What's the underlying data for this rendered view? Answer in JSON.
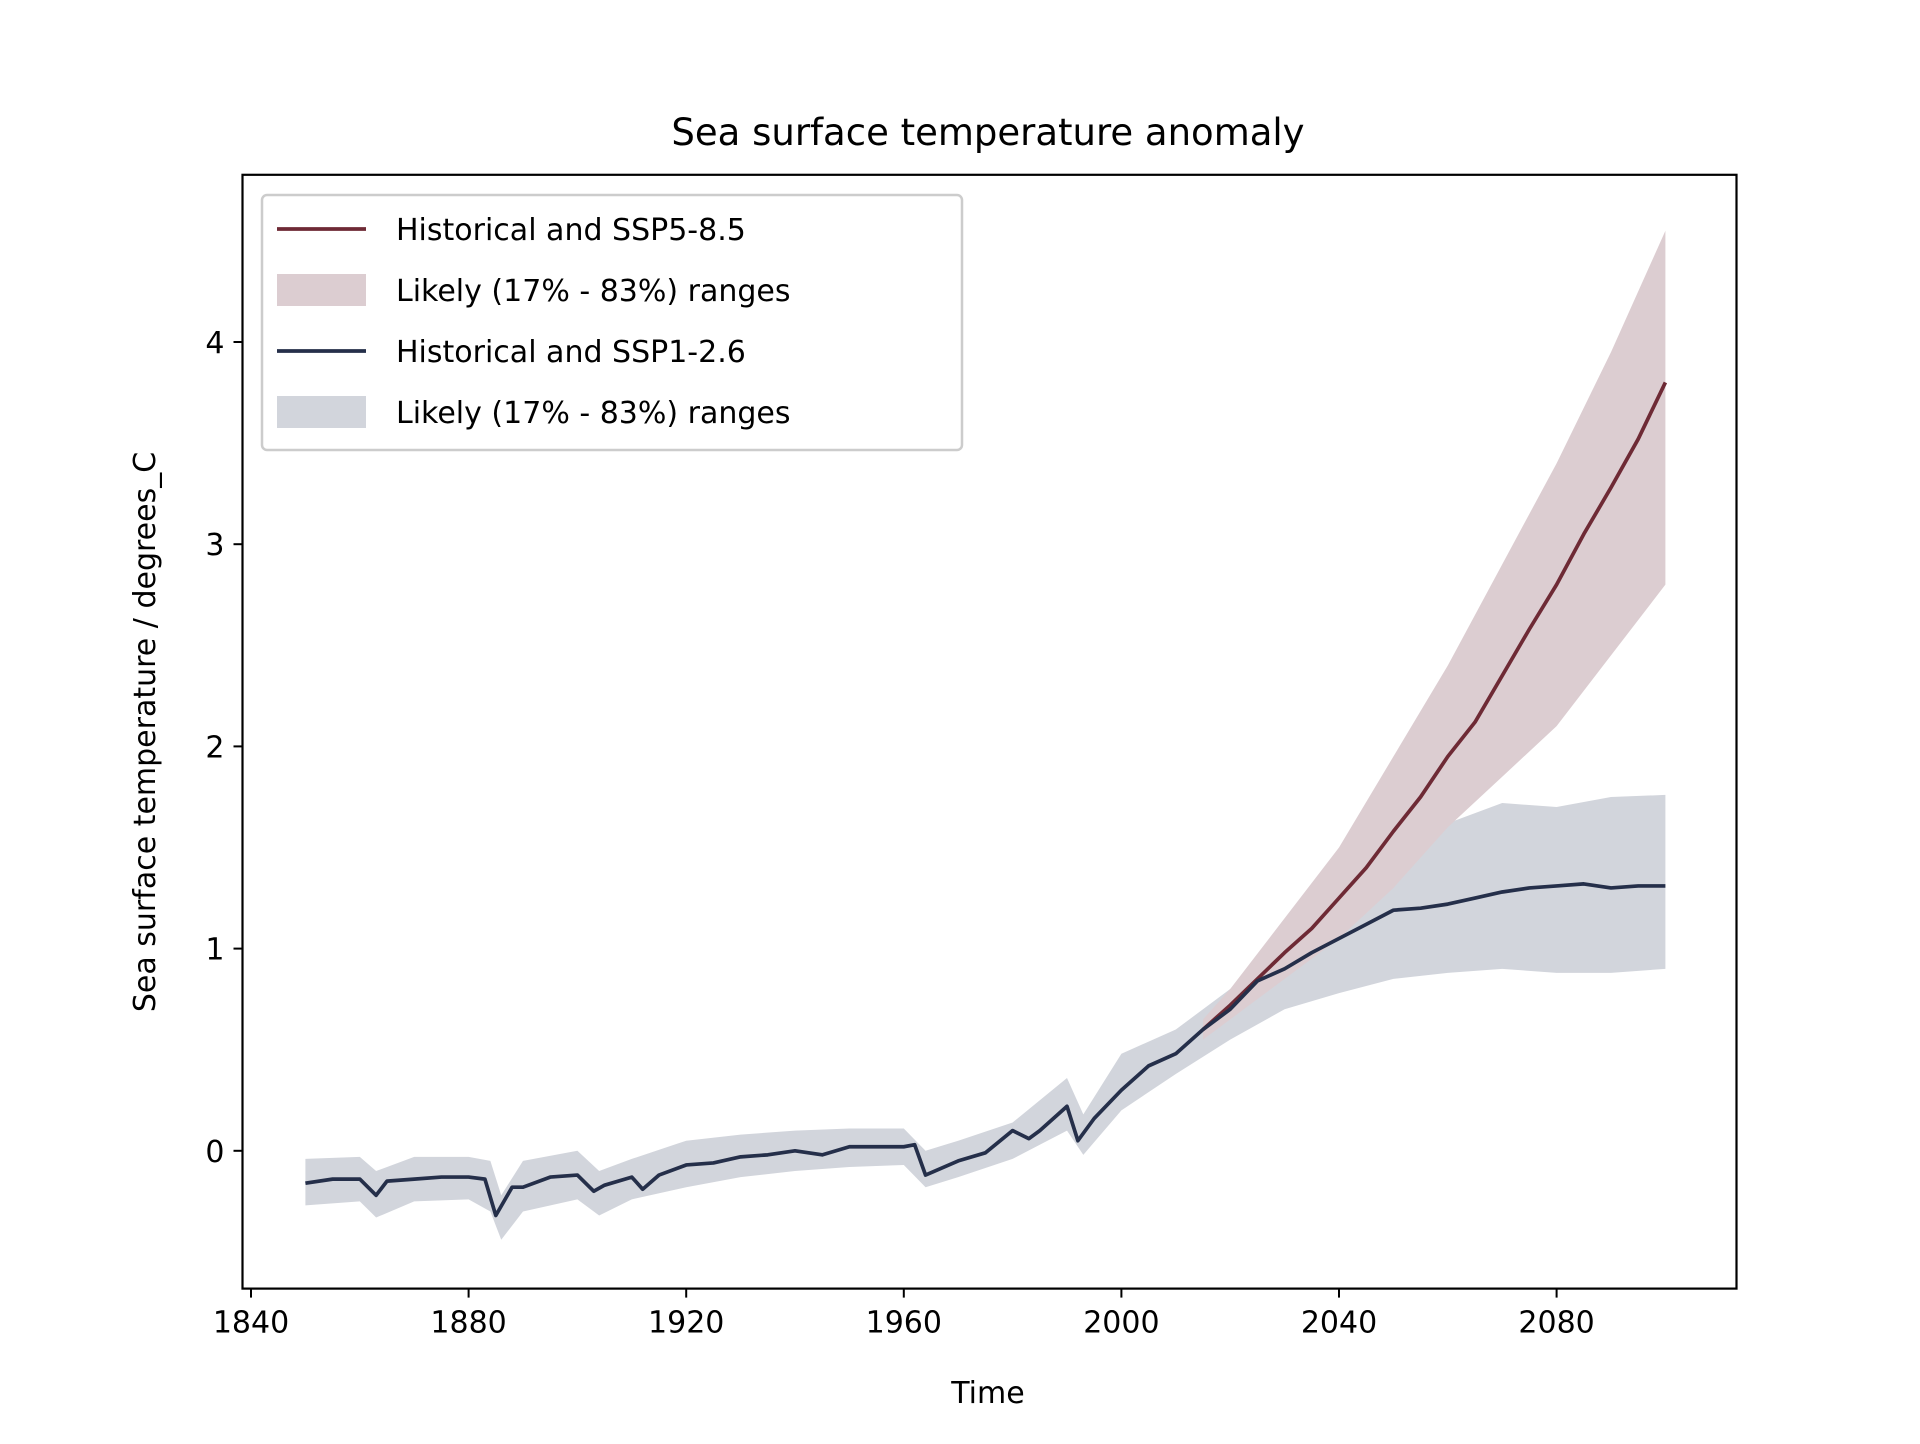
{
  "chart_data": {
    "type": "line",
    "title": "Sea surface temperature anomaly",
    "xlabel": "Time",
    "ylabel": "Sea surface temperature / degrees_C",
    "xlim": [
      1838,
      2110
    ],
    "ylim": [
      -0.68,
      4.8
    ],
    "xticks": [
      1840,
      1880,
      1920,
      1960,
      2000,
      2040,
      2080
    ],
    "yticks": [
      0,
      1,
      2,
      3,
      4
    ],
    "grid": false,
    "legend_placement": "top-left",
    "legend": [
      {
        "label": "Historical and SSP5-8.5",
        "kind": "line",
        "color": "#6e2a35"
      },
      {
        "label": "Likely (17% - 83%) ranges",
        "kind": "band",
        "color": "#dccdd1"
      },
      {
        "label": "Historical and SSP1-2.6",
        "kind": "line",
        "color": "#252f4a"
      },
      {
        "label": "Likely (17% - 83%) ranges",
        "kind": "band",
        "color": "#d2d5dc"
      }
    ],
    "series": [
      {
        "name": "Historical and SSP1-2.6",
        "color": "#252f4a",
        "x": [
          1850,
          1855,
          1860,
          1863,
          1865,
          1870,
          1875,
          1880,
          1883,
          1885,
          1888,
          1890,
          1895,
          1900,
          1903,
          1905,
          1910,
          1912,
          1915,
          1920,
          1925,
          1930,
          1935,
          1940,
          1945,
          1950,
          1955,
          1960,
          1962,
          1964,
          1970,
          1975,
          1980,
          1983,
          1985,
          1990,
          1992,
          1995,
          2000,
          2005,
          2010,
          2015,
          2020,
          2025,
          2030,
          2035,
          2040,
          2045,
          2050,
          2055,
          2060,
          2065,
          2070,
          2075,
          2080,
          2085,
          2090,
          2095,
          2100
        ],
        "y": [
          -0.16,
          -0.14,
          -0.14,
          -0.22,
          -0.15,
          -0.14,
          -0.13,
          -0.13,
          -0.14,
          -0.32,
          -0.18,
          -0.18,
          -0.13,
          -0.12,
          -0.2,
          -0.17,
          -0.13,
          -0.19,
          -0.12,
          -0.07,
          -0.06,
          -0.03,
          -0.02,
          0.0,
          -0.02,
          0.02,
          0.02,
          0.02,
          0.03,
          -0.12,
          -0.05,
          -0.01,
          0.1,
          0.06,
          0.1,
          0.22,
          0.05,
          0.16,
          0.3,
          0.42,
          0.48,
          0.6,
          0.7,
          0.84,
          0.9,
          0.98,
          1.05,
          1.12,
          1.19,
          1.2,
          1.22,
          1.25,
          1.28,
          1.3,
          1.31,
          1.32,
          1.3,
          1.31,
          1.31
        ]
      },
      {
        "name": "Historical and SSP5-8.5",
        "color": "#6e2a35",
        "x": [
          2015,
          2020,
          2025,
          2030,
          2035,
          2040,
          2045,
          2050,
          2055,
          2060,
          2065,
          2070,
          2075,
          2080,
          2085,
          2090,
          2095,
          2100
        ],
        "y": [
          0.6,
          0.72,
          0.85,
          0.98,
          1.1,
          1.25,
          1.4,
          1.58,
          1.75,
          1.95,
          2.12,
          2.35,
          2.58,
          2.8,
          3.05,
          3.28,
          3.52,
          3.8
        ]
      }
    ],
    "bands": [
      {
        "label": "Likely (17% - 83%) ranges",
        "of": "Historical and SSP5-8.5",
        "color": "#dccdd1",
        "x": [
          2015,
          2020,
          2030,
          2040,
          2050,
          2060,
          2070,
          2080,
          2090,
          2100
        ],
        "low": [
          0.55,
          0.65,
          0.85,
          1.05,
          1.3,
          1.6,
          1.85,
          2.1,
          2.45,
          2.8
        ],
        "high": [
          0.65,
          0.8,
          1.15,
          1.5,
          1.95,
          2.4,
          2.9,
          3.4,
          3.95,
          4.55
        ]
      },
      {
        "label": "Likely (17% - 83%) ranges",
        "of": "Historical and SSP1-2.6",
        "color": "#d2d5dc",
        "x": [
          1850,
          1860,
          1863,
          1870,
          1880,
          1884,
          1886,
          1890,
          1900,
          1904,
          1910,
          1920,
          1930,
          1940,
          1950,
          1960,
          1964,
          1970,
          1980,
          1990,
          1993,
          2000,
          2010,
          2020,
          2030,
          2040,
          2050,
          2060,
          2070,
          2080,
          2090,
          2100
        ],
        "low": [
          -0.27,
          -0.25,
          -0.33,
          -0.25,
          -0.24,
          -0.3,
          -0.44,
          -0.3,
          -0.24,
          -0.32,
          -0.24,
          -0.18,
          -0.13,
          -0.1,
          -0.08,
          -0.07,
          -0.18,
          -0.13,
          -0.04,
          0.1,
          -0.02,
          0.2,
          0.38,
          0.55,
          0.7,
          0.78,
          0.85,
          0.88,
          0.9,
          0.88,
          0.88,
          0.9
        ],
        "high": [
          -0.04,
          -0.03,
          -0.1,
          -0.03,
          -0.03,
          -0.05,
          -0.22,
          -0.05,
          0.0,
          -0.1,
          -0.04,
          0.05,
          0.08,
          0.1,
          0.11,
          0.11,
          0.0,
          0.05,
          0.14,
          0.36,
          0.18,
          0.48,
          0.6,
          0.8,
          1.0,
          1.22,
          1.45,
          1.62,
          1.72,
          1.7,
          1.75,
          1.76
        ]
      }
    ]
  }
}
